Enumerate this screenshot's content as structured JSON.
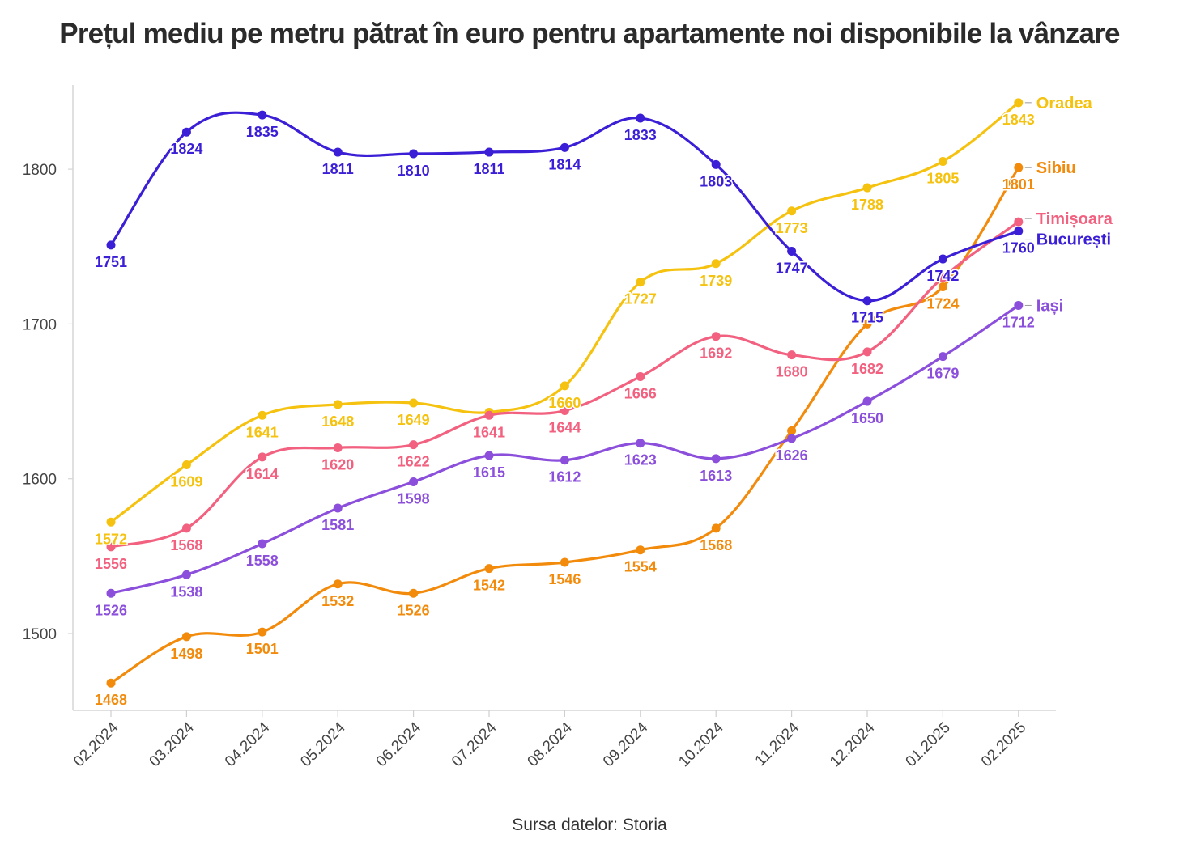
{
  "chart_data": {
    "type": "line",
    "title": "Prețul mediu pe metru pătrat în euro pentru apartamente noi disponibile la vânzare",
    "caption": "Sursa datelor: Storia",
    "xlabel": "",
    "ylabel": "",
    "x": [
      "02.2024",
      "03.2024",
      "04.2024",
      "05.2024",
      "06.2024",
      "07.2024",
      "08.2024",
      "09.2024",
      "10.2024",
      "11.2024",
      "12.2024",
      "01.2025",
      "02.2025"
    ],
    "ylim": [
      1450,
      1855
    ],
    "yticks": [
      1500,
      1600,
      1700,
      1800
    ],
    "grid": false,
    "legend": "end-of-line labels",
    "series": [
      {
        "name": "Oradea",
        "color": "#f5c20f",
        "values": [
          1572,
          1609,
          1641,
          1648,
          1649,
          1643,
          1660,
          1727,
          1739,
          1773,
          1788,
          1805,
          1843
        ],
        "labels": [
          "1572",
          "1609",
          "1641",
          "1648",
          "1649",
          "",
          "1660",
          "1727",
          "1739",
          "1773",
          "1788",
          "1805",
          "1843"
        ]
      },
      {
        "name": "Sibiu",
        "color": "#f28b0c",
        "values": [
          1468,
          1498,
          1501,
          1532,
          1526,
          1542,
          1546,
          1554,
          1568,
          1631,
          1700,
          1724,
          1801
        ],
        "labels": [
          "1468",
          "1498",
          "1501",
          "1532",
          "1526",
          "1542",
          "1546",
          "1554",
          "1568",
          "",
          "",
          "1724",
          "1801"
        ]
      },
      {
        "name": "Timișoara",
        "color": "#f2617f",
        "values": [
          1556,
          1568,
          1614,
          1620,
          1622,
          1641,
          1644,
          1666,
          1692,
          1680,
          1682,
          1730,
          1766
        ],
        "labels": [
          "1556",
          "1568",
          "1614",
          "1620",
          "1622",
          "1641",
          "1644",
          "1666",
          "1692",
          "1680",
          "1682",
          "",
          ""
        ]
      },
      {
        "name": "București",
        "color": "#3a1fd6",
        "values": [
          1751,
          1824,
          1835,
          1811,
          1810,
          1811,
          1814,
          1833,
          1803,
          1747,
          1715,
          1742,
          1760
        ],
        "labels": [
          "1751",
          "1824",
          "1835",
          "1811",
          "1810",
          "1811",
          "1814",
          "1833",
          "1803",
          "1747",
          "1715",
          "1742",
          "1760"
        ]
      },
      {
        "name": "Iași",
        "color": "#8b4fdc",
        "values": [
          1526,
          1538,
          1558,
          1581,
          1598,
          1615,
          1612,
          1623,
          1613,
          1626,
          1650,
          1679,
          1712
        ],
        "labels": [
          "1526",
          "1538",
          "1558",
          "1581",
          "1598",
          "1615",
          "1612",
          "1623",
          "1613",
          "1626",
          "1650",
          "1679",
          "1712"
        ]
      }
    ]
  }
}
